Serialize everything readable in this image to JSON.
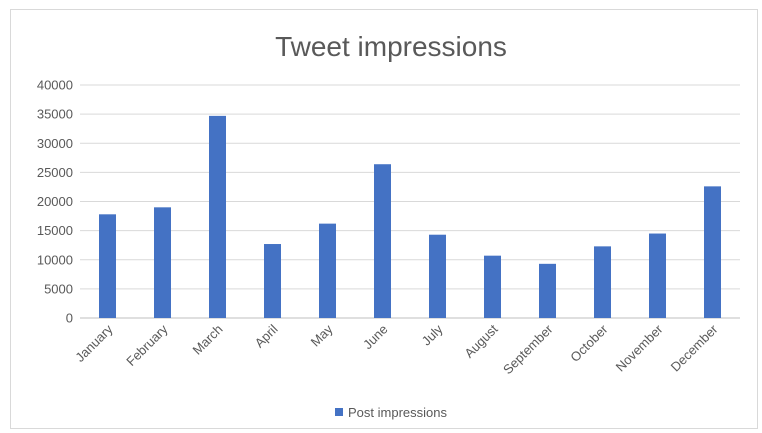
{
  "chart_data": {
    "type": "bar",
    "title": "Tweet impressions",
    "categories": [
      "January",
      "February",
      "March",
      "April",
      "May",
      "June",
      "July",
      "August",
      "September",
      "October",
      "November",
      "December"
    ],
    "series": [
      {
        "name": "Post impressions",
        "values": [
          17800,
          19000,
          34700,
          12700,
          16200,
          26400,
          14300,
          10700,
          9300,
          12300,
          14500,
          22600
        ]
      }
    ],
    "ylim": [
      0,
      40000
    ],
    "yticks": [
      0,
      5000,
      10000,
      15000,
      20000,
      25000,
      30000,
      35000,
      40000
    ],
    "grid": true,
    "legend": "bottom",
    "colors": {
      "bar": "#4472c4",
      "grid": "#d9d9d9",
      "text": "#595959"
    }
  }
}
